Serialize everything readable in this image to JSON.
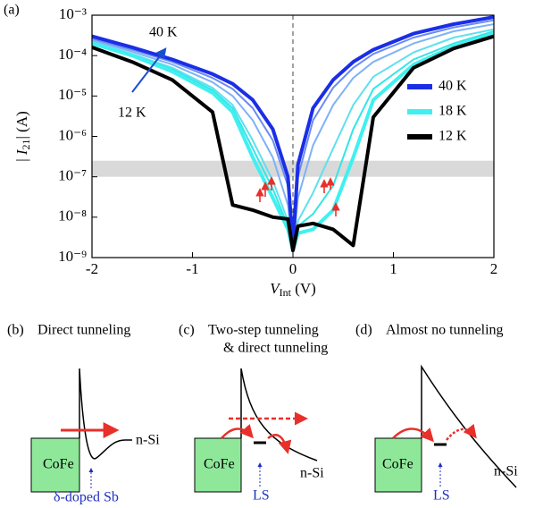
{
  "chart_data": {
    "type": "line",
    "panel_label": "(a)",
    "xlabel": [
      "V",
      "Int",
      " (V)"
    ],
    "ylabel": [
      "| ",
      "I",
      "21",
      "| (A)"
    ],
    "log_y": true,
    "xlim": [
      -2,
      2
    ],
    "xticks": [
      -2,
      -1,
      0,
      1,
      2
    ],
    "ylim": [
      1e-09,
      0.001
    ],
    "yticks": [
      {
        "value": 1e-09,
        "label": "10⁻⁹"
      },
      {
        "value": 1e-08,
        "label": "10⁻⁸"
      },
      {
        "value": 1e-07,
        "label": "10⁻⁷"
      },
      {
        "value": 1e-06,
        "label": "10⁻⁶"
      },
      {
        "value": 1e-05,
        "label": "10⁻⁵"
      },
      {
        "value": 0.0001,
        "label": "10⁻⁴"
      },
      {
        "value": 0.001,
        "label": "10⁻³"
      }
    ],
    "shaded_range": [
      1e-07,
      2.5e-07
    ],
    "vline": 0,
    "annotations": [
      "40 K",
      "12 K"
    ],
    "x": [
      -2,
      -1.6,
      -1.2,
      -0.8,
      -0.6,
      -0.4,
      -0.2,
      -0.05,
      0,
      0.05,
      0.2,
      0.4,
      0.6,
      0.8,
      1.2,
      1.6,
      2
    ],
    "series": [
      {
        "color": "#6a8cf0",
        "values": [
          0.00026,
          0.00014,
          7e-05,
          2.8e-05,
          1.5e-05,
          5e-06,
          8e-07,
          6e-08,
          1.8e-09,
          1e-07,
          2.5e-06,
          1.6e-05,
          5e-05,
          0.00011,
          0.00028,
          0.0005,
          0.00075
        ]
      },
      {
        "color": "#7fb2f5",
        "values": [
          0.00024,
          0.000125,
          6e-05,
          2.2e-05,
          1e-05,
          2.5e-06,
          3e-07,
          2e-08,
          1.6e-09,
          3e-08,
          6e-07,
          6e-06,
          2.8e-05,
          7e-05,
          0.0002,
          0.0004,
          0.0006
        ]
      },
      {
        "color": "#5fe0ee",
        "values": [
          0.00022,
          0.00011,
          5e-05,
          1.6e-05,
          6e-06,
          8e-07,
          8e-08,
          8e-09,
          1.5e-09,
          8e-09,
          4e-08,
          5e-07,
          6e-06,
          3e-05,
          0.00012,
          0.00028,
          0.00045
        ]
      },
      {
        "color": "#33e6e6",
        "values": [
          0.00021,
          0.000105,
          4.5e-05,
          1.4e-05,
          5e-06,
          5e-07,
          5e-08,
          6e-09,
          1.5e-09,
          6e-09,
          1.2e-08,
          6e-08,
          1.5e-06,
          1.5e-05,
          8e-05,
          0.0002,
          0.0004
        ]
      },
      {
        "name": "40 K",
        "color": "#1a2ee6",
        "values": [
          0.0003,
          0.00016,
          8e-05,
          3.5e-05,
          2e-05,
          8e-06,
          1.5e-06,
          1e-07,
          2e-09,
          2e-07,
          5e-06,
          2.5e-05,
          7e-05,
          0.00014,
          0.00035,
          0.0006,
          0.0009
        ]
      },
      {
        "name": "18 K",
        "color": "#40f0f0",
        "values": [
          0.0002,
          0.0001,
          4e-05,
          1.2e-05,
          4e-06,
          3e-07,
          3e-08,
          5e-09,
          1.5e-09,
          4e-09,
          5e-09,
          1.5e-08,
          3e-07,
          8e-06,
          6e-05,
          0.00017,
          0.00035
        ]
      },
      {
        "name": "12 K",
        "color": "#000000",
        "values": [
          0.00016,
          7e-05,
          2.5e-05,
          4e-06,
          2e-08,
          1.5e-08,
          1e-08,
          9e-09,
          1.5e-09,
          6e-09,
          7e-09,
          5e-09,
          2e-09,
          3e-06,
          5e-05,
          0.00015,
          0.0003
        ]
      }
    ]
  },
  "panels": [
    {
      "label": "(b)",
      "title": [
        "Direct tunneling"
      ],
      "metal": "CoFe",
      "semi": "n-Si",
      "state": "δ-doped Sb"
    },
    {
      "label": "(c)",
      "title": [
        "Two-step tunneling",
        "& direct tunneling"
      ],
      "metal": "CoFe",
      "semi": "n-Si",
      "state": "LS"
    },
    {
      "label": "(d)",
      "title": [
        "Almost no tunneling"
      ],
      "metal": "CoFe",
      "semi": "n-Si",
      "state": "LS"
    }
  ]
}
